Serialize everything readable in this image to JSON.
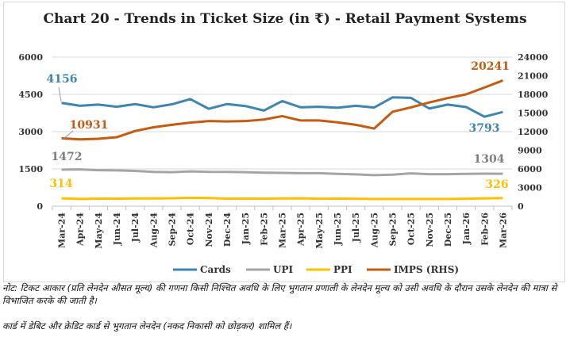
{
  "chart_data": {
    "type": "line",
    "title": "Chart 20 - Trends in Ticket Size (in ₹) - Retail Payment Systems",
    "categories": [
      "Mar-24",
      "Apr-24",
      "May-24",
      "Jun-24",
      "Jul-24",
      "Aug-24",
      "Sep-24",
      "Oct-24",
      "Nov-24",
      "Dec-24",
      "Jan-25",
      "Feb-25",
      "Mar-25",
      "Apr-25",
      "May-25",
      "Jun-25",
      "Jul-25",
      "Aug-25",
      "Sep-25",
      "Oct-25",
      "Nov-25",
      "Dec-25",
      "Jan-26",
      "Feb-26",
      "Mar-26"
    ],
    "ylim_left": [
      0,
      6000
    ],
    "yticks_left": [
      0,
      1500,
      3000,
      4500,
      6000
    ],
    "ylim_right": [
      0,
      24000
    ],
    "yticks_right": [
      0,
      3000,
      6000,
      9000,
      12000,
      15000,
      18000,
      21000,
      24000
    ],
    "grid": true,
    "legend": "bottom",
    "series": [
      {
        "name": "Cards",
        "axis": "left",
        "color": "#3e85b0",
        "values": [
          4156,
          4040,
          4090,
          4000,
          4110,
          3980,
          4100,
          4310,
          3920,
          4110,
          4030,
          3850,
          4230,
          3980,
          4000,
          3960,
          4040,
          3970,
          4380,
          4360,
          3930,
          4090,
          3990,
          3600,
          3793
        ],
        "labels": {
          "first": "4156",
          "last": "3793"
        }
      },
      {
        "name": "UPI",
        "axis": "left",
        "color": "#a5a5a5",
        "values": [
          1472,
          1480,
          1450,
          1440,
          1420,
          1380,
          1370,
          1400,
          1380,
          1380,
          1370,
          1350,
          1340,
          1330,
          1330,
          1300,
          1280,
          1250,
          1270,
          1320,
          1290,
          1290,
          1300,
          1310,
          1304
        ],
        "labels": {
          "first": "1472",
          "last": "1304"
        }
      },
      {
        "name": "PPI",
        "axis": "left",
        "color": "#ffc000",
        "values": [
          314,
          290,
          305,
          305,
          310,
          310,
          320,
          340,
          330,
          305,
          305,
          305,
          310,
          315,
          300,
          305,
          300,
          290,
          290,
          290,
          290,
          290,
          300,
          315,
          326
        ],
        "labels": {
          "first": "314",
          "last": "326"
        }
      },
      {
        "name": "IMPS (RHS)",
        "axis": "right",
        "color": "#c55a11",
        "values": [
          10931,
          10750,
          10850,
          11100,
          12100,
          12700,
          13100,
          13450,
          13700,
          13650,
          13700,
          13950,
          14500,
          13800,
          13800,
          13500,
          13100,
          12500,
          15200,
          15900,
          16700,
          17400,
          18000,
          19100,
          20241
        ],
        "labels": {
          "first": "10931",
          "last": "20241"
        }
      }
    ]
  },
  "notes": [
    "नोट: टिकट आकार (प्रति लेनदेन औसत मूल्य) की गणना किसी निश्चित अवधि के लिए भुगतान प्रणाली के लेनदेन मूल्य को उसी अवधि के दौरान उसके लेनदेन की मात्रा से विभाजित करके की जाती है।",
    "कार्ड में डेबिट और क्रेडिट कार्ड से भुगतान लेनदेन (नकद निकासी को छोड़कर) शामिल हैं।"
  ]
}
